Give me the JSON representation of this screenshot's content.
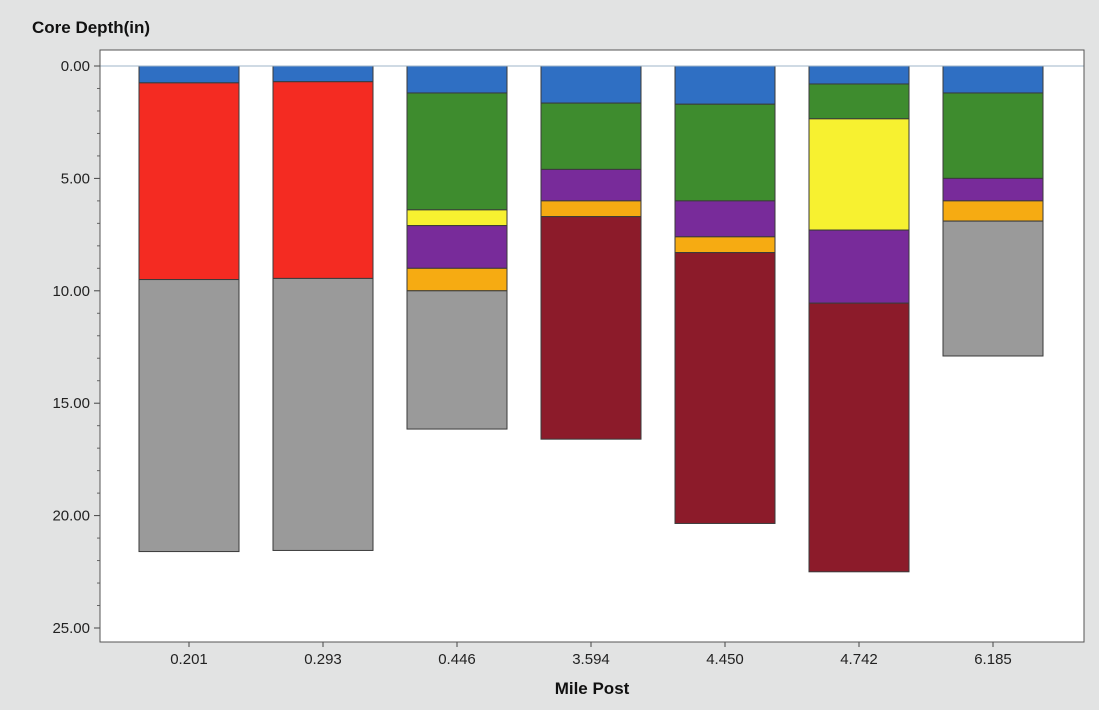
{
  "chart_data": {
    "type": "bar",
    "stacked": true,
    "y_inverted": true,
    "ylabel": "Core Depth(in)",
    "xlabel": "Mile Post",
    "ylim": [
      0,
      25
    ],
    "yticks": [
      "0.00",
      "5.00",
      "10.00",
      "15.00",
      "20.00",
      "25.00"
    ],
    "categories": [
      "0.201",
      "0.293",
      "0.446",
      "3.594",
      "4.450",
      "4.742",
      "6.185"
    ],
    "grid": false,
    "legend": "none",
    "colors": {
      "blue": "#2f6fc3",
      "red": "#f42b22",
      "gray": "#9a9a9a",
      "green": "#3e8c2e",
      "yellow": "#f7f130",
      "purple": "#782b9a",
      "orange": "#f6ab12",
      "maroon": "#8c1b2a"
    },
    "layers": [
      [
        {
          "color": "blue",
          "top": 0.0,
          "bottom": 0.75
        },
        {
          "color": "red",
          "top": 0.75,
          "bottom": 9.5
        },
        {
          "color": "gray",
          "top": 9.5,
          "bottom": 21.6
        }
      ],
      [
        {
          "color": "blue",
          "top": 0.0,
          "bottom": 0.7
        },
        {
          "color": "red",
          "top": 0.7,
          "bottom": 9.45
        },
        {
          "color": "gray",
          "top": 9.45,
          "bottom": 21.55
        }
      ],
      [
        {
          "color": "blue",
          "top": 0.0,
          "bottom": 1.2
        },
        {
          "color": "green",
          "top": 1.2,
          "bottom": 6.4
        },
        {
          "color": "yellow",
          "top": 6.4,
          "bottom": 7.1
        },
        {
          "color": "purple",
          "top": 7.1,
          "bottom": 9.0
        },
        {
          "color": "orange",
          "top": 9.0,
          "bottom": 10.0
        },
        {
          "color": "gray",
          "top": 10.0,
          "bottom": 16.15
        }
      ],
      [
        {
          "color": "blue",
          "top": 0.0,
          "bottom": 1.65
        },
        {
          "color": "green",
          "top": 1.65,
          "bottom": 4.6
        },
        {
          "color": "purple",
          "top": 4.6,
          "bottom": 6.0
        },
        {
          "color": "orange",
          "top": 6.0,
          "bottom": 6.7
        },
        {
          "color": "maroon",
          "top": 6.7,
          "bottom": 16.6
        }
      ],
      [
        {
          "color": "blue",
          "top": 0.0,
          "bottom": 1.7
        },
        {
          "color": "green",
          "top": 1.7,
          "bottom": 6.0
        },
        {
          "color": "purple",
          "top": 6.0,
          "bottom": 7.6
        },
        {
          "color": "orange",
          "top": 7.6,
          "bottom": 8.3
        },
        {
          "color": "maroon",
          "top": 8.3,
          "bottom": 20.35
        }
      ],
      [
        {
          "color": "blue",
          "top": 0.0,
          "bottom": 0.8
        },
        {
          "color": "green",
          "top": 0.8,
          "bottom": 2.35
        },
        {
          "color": "yellow",
          "top": 2.35,
          "bottom": 7.3
        },
        {
          "color": "purple",
          "top": 7.3,
          "bottom": 10.55
        },
        {
          "color": "maroon",
          "top": 10.55,
          "bottom": 22.5
        }
      ],
      [
        {
          "color": "blue",
          "top": 0.0,
          "bottom": 1.2
        },
        {
          "color": "green",
          "top": 1.2,
          "bottom": 5.0
        },
        {
          "color": "purple",
          "top": 5.0,
          "bottom": 6.0
        },
        {
          "color": "orange",
          "top": 6.0,
          "bottom": 6.9
        },
        {
          "color": "gray",
          "top": 6.9,
          "bottom": 12.9
        }
      ]
    ]
  }
}
